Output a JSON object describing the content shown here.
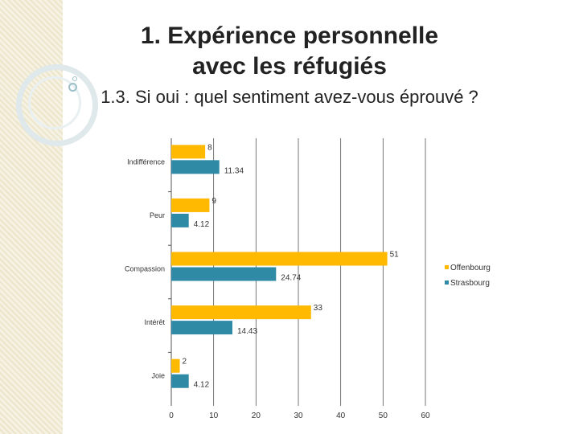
{
  "slide": {
    "title_line1": "1. Expérience personnelle",
    "title_line2": "avec les réfugiés",
    "subtitle": "1.3. Si oui : quel sentiment avez-vous éprouvé ?"
  },
  "colors": {
    "offenbourg": "#FFB900",
    "strasbourg": "#2E8AA5",
    "grid": "#555555"
  },
  "chart_data": {
    "type": "bar",
    "orientation": "horizontal",
    "categories": [
      "Indifférence",
      "Peur",
      "Compassion",
      "Intérêt",
      "Joie"
    ],
    "series": [
      {
        "name": "Offenbourg",
        "values": [
          8,
          9,
          51,
          33,
          2
        ],
        "labels": [
          "8",
          "9",
          "51",
          "33",
          "2"
        ]
      },
      {
        "name": "Strasbourg",
        "values": [
          11.34,
          4.12,
          24.74,
          14.43,
          4.12
        ],
        "labels": [
          "11.34",
          "4.12",
          "24.74",
          "14.43",
          "4.12"
        ]
      }
    ],
    "xlim": [
      0,
      60
    ],
    "xticks": [
      "0",
      "10",
      "20",
      "30",
      "40",
      "50",
      "60"
    ],
    "grid": true,
    "legend": "right"
  }
}
